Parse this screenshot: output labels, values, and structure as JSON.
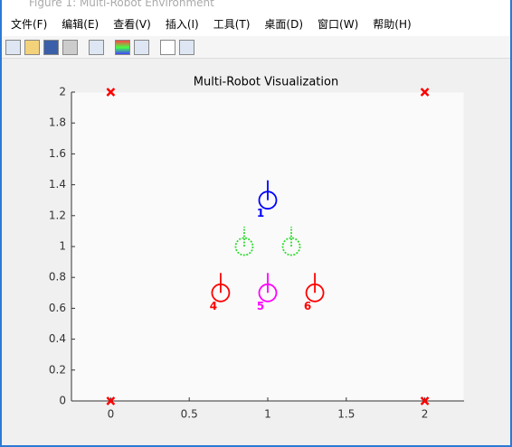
{
  "window": {
    "title": "Figure 1: Multi-Robot Environment",
    "menu": [
      "文件(F)",
      "编辑(E)",
      "查看(V)",
      "插入(I)",
      "工具(T)",
      "桌面(D)",
      "窗口(W)",
      "帮助(H)"
    ]
  },
  "chart_data": {
    "type": "scatter",
    "title": "Multi-Robot Visualization",
    "xlim": [
      -0.25,
      2.25
    ],
    "xticks": [
      0,
      0.5,
      1,
      1.5,
      2
    ],
    "ylim": [
      0,
      2
    ],
    "yticks": [
      0,
      0.2,
      0.4,
      0.6,
      0.8,
      1,
      1.2,
      1.4,
      1.6,
      1.8,
      2
    ],
    "series": [
      {
        "marker": "x",
        "color": "#ff0000",
        "x": [
          0,
          2,
          0,
          2
        ],
        "values": [
          2,
          2,
          0,
          0
        ]
      },
      {
        "marker": "robot",
        "color": "#0000ff",
        "x": [
          1
        ],
        "values": [
          1.3
        ],
        "point_labels": [
          "1"
        ]
      },
      {
        "marker": "robot",
        "color": "#33dd33",
        "dashed": true,
        "x": [
          0.85,
          1.15
        ],
        "values": [
          1,
          1
        ]
      },
      {
        "marker": "robot",
        "color": "#ff0000",
        "x": [
          0.7,
          1.3
        ],
        "values": [
          0.7,
          0.7
        ],
        "point_labels": [
          "4",
          "6"
        ]
      },
      {
        "marker": "robot",
        "color": "#ff00ff",
        "x": [
          1
        ],
        "values": [
          0.7
        ],
        "point_labels": [
          "5"
        ]
      }
    ]
  }
}
